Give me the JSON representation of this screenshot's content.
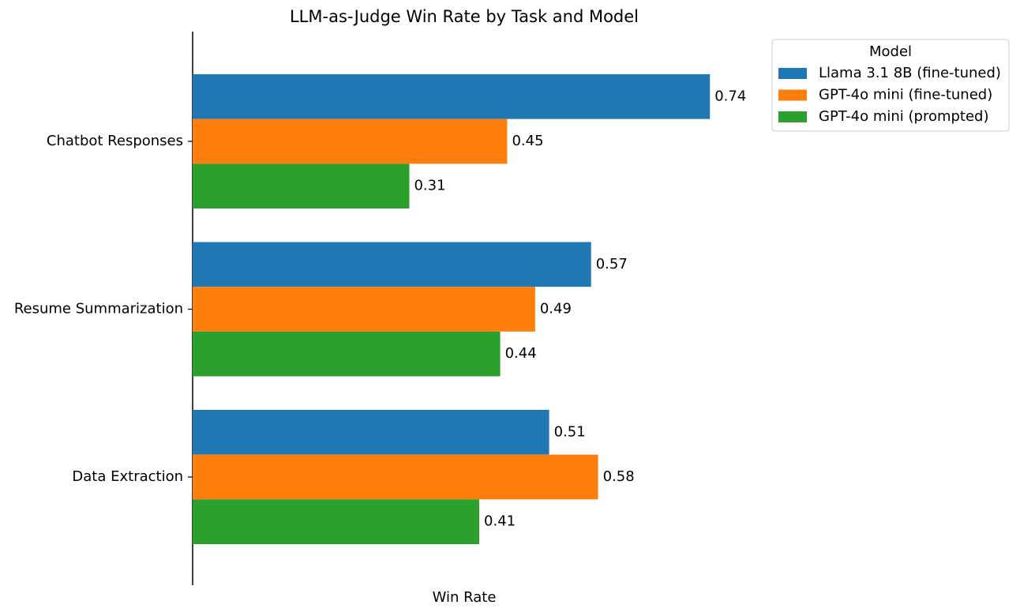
{
  "chart_data": {
    "type": "hbar",
    "title": "LLM-as-Judge Win Rate by Task and Model",
    "xlabel": "Win Rate",
    "categories": [
      "Chatbot Responses",
      "Resume Summarization",
      "Data Extraction"
    ],
    "series": [
      {
        "name": "Llama 3.1 8B (fine-tuned)",
        "color": "#1f77b4",
        "values": [
          0.74,
          0.57,
          0.51
        ]
      },
      {
        "name": "GPT-4o mini (fine-tuned)",
        "color": "#ff7f0e",
        "values": [
          0.45,
          0.49,
          0.58
        ]
      },
      {
        "name": "GPT-4o mini (prompted)",
        "color": "#2ca02c",
        "values": [
          0.31,
          0.44,
          0.41
        ]
      }
    ],
    "xlim": [
      0,
      0.777
    ],
    "xticks": [],
    "legend_title": "Model",
    "legend_position": "upper-right-outside"
  }
}
